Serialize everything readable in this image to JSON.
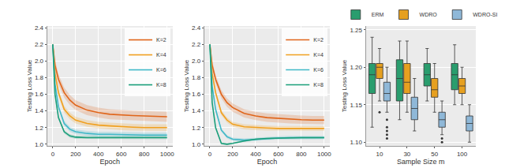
{
  "chart_data": [
    {
      "type": "line",
      "x_label": "Epoch",
      "y_label": "Testing Loss Value",
      "grid": true,
      "legend": "top right",
      "x": [
        0,
        20,
        50,
        100,
        150,
        200,
        300,
        400,
        500,
        600,
        700,
        800,
        900,
        1000
      ],
      "xlim": [
        -50,
        1050
      ],
      "xticks": [
        0,
        200,
        400,
        600,
        800,
        1000
      ],
      "ylim": [
        0.98,
        2.42
      ],
      "yticks": [
        {
          "value": 1,
          "label": "1.0"
        },
        1.2,
        1.4,
        1.6,
        1.8,
        {
          "value": 2,
          "label": "2.0"
        },
        2.2,
        2.4
      ],
      "series": [
        {
          "name": "K=2",
          "color": "#e0651a",
          "values": [
            2.2,
            1.95,
            1.78,
            1.62,
            1.53,
            1.47,
            1.41,
            1.38,
            1.36,
            1.35,
            1.345,
            1.34,
            1.335,
            1.33
          ],
          "lower": [
            2.16,
            1.89,
            1.72,
            1.56,
            1.47,
            1.41,
            1.35,
            1.32,
            1.3,
            1.29,
            1.285,
            1.28,
            1.275,
            1.27
          ],
          "upper": [
            2.24,
            2.01,
            1.84,
            1.68,
            1.59,
            1.53,
            1.47,
            1.44,
            1.42,
            1.41,
            1.405,
            1.4,
            1.395,
            1.39
          ]
        },
        {
          "name": "K=4",
          "color": "#f0a020",
          "values": [
            2.2,
            1.85,
            1.62,
            1.42,
            1.34,
            1.29,
            1.25,
            1.23,
            1.22,
            1.21,
            1.205,
            1.2,
            1.2,
            1.2
          ],
          "lower": [
            2.17,
            1.81,
            1.58,
            1.38,
            1.3,
            1.25,
            1.21,
            1.19,
            1.18,
            1.17,
            1.165,
            1.16,
            1.16,
            1.16
          ],
          "upper": [
            2.23,
            1.89,
            1.66,
            1.46,
            1.38,
            1.33,
            1.29,
            1.27,
            1.26,
            1.25,
            1.245,
            1.24,
            1.24,
            1.24
          ]
        },
        {
          "name": "K=6",
          "color": "#40b8c8",
          "values": [
            2.2,
            1.72,
            1.45,
            1.25,
            1.18,
            1.15,
            1.13,
            1.12,
            1.12,
            1.115,
            1.115,
            1.11,
            1.11,
            1.11
          ],
          "lower": [
            2.18,
            1.69,
            1.42,
            1.22,
            1.15,
            1.12,
            1.1,
            1.09,
            1.09,
            1.085,
            1.085,
            1.08,
            1.08,
            1.08
          ],
          "upper": [
            2.22,
            1.75,
            1.48,
            1.28,
            1.21,
            1.18,
            1.16,
            1.15,
            1.15,
            1.145,
            1.145,
            1.14,
            1.14,
            1.14
          ]
        },
        {
          "name": "K=8",
          "color": "#1a9e7a",
          "values": [
            2.2,
            1.6,
            1.32,
            1.15,
            1.1,
            1.085,
            1.08,
            1.08,
            1.08,
            1.08,
            1.08,
            1.08,
            1.08,
            1.08
          ],
          "lower": [
            2.18,
            1.58,
            1.3,
            1.13,
            1.08,
            1.065,
            1.06,
            1.06,
            1.06,
            1.06,
            1.06,
            1.06,
            1.06,
            1.06
          ],
          "upper": [
            2.22,
            1.62,
            1.34,
            1.17,
            1.12,
            1.105,
            1.1,
            1.1,
            1.1,
            1.1,
            1.1,
            1.1,
            1.1,
            1.1
          ]
        }
      ]
    },
    {
      "type": "line",
      "x_label": "Epoch",
      "y_label": "Testing Loss Value",
      "grid": true,
      "legend": "top right",
      "x": [
        0,
        20,
        50,
        100,
        150,
        200,
        300,
        400,
        500,
        600,
        700,
        800,
        900,
        1000
      ],
      "xlim": [
        -50,
        1050
      ],
      "xticks": [
        0,
        200,
        400,
        600,
        800,
        1000
      ],
      "ylim": [
        0.98,
        2.42
      ],
      "yticks": [
        {
          "value": 1,
          "label": "1.0"
        },
        1.2,
        1.4,
        1.6,
        1.8,
        {
          "value": 2,
          "label": "2.0"
        },
        2.2,
        2.4
      ],
      "series": [
        {
          "name": "K=2",
          "color": "#e0651a",
          "values": [
            2.2,
            1.95,
            1.78,
            1.6,
            1.5,
            1.44,
            1.37,
            1.34,
            1.32,
            1.31,
            1.3,
            1.295,
            1.29,
            1.29
          ],
          "lower": [
            2.16,
            1.9,
            1.73,
            1.55,
            1.45,
            1.39,
            1.32,
            1.29,
            1.27,
            1.26,
            1.25,
            1.245,
            1.24,
            1.24
          ],
          "upper": [
            2.24,
            2.0,
            1.83,
            1.65,
            1.55,
            1.49,
            1.42,
            1.39,
            1.37,
            1.36,
            1.35,
            1.345,
            1.34,
            1.34
          ]
        },
        {
          "name": "K=4",
          "color": "#f0a020",
          "values": [
            2.2,
            1.85,
            1.62,
            1.38,
            1.29,
            1.24,
            1.21,
            1.2,
            1.195,
            1.19,
            1.19,
            1.19,
            1.19,
            1.19
          ],
          "lower": [
            2.18,
            1.82,
            1.59,
            1.35,
            1.26,
            1.21,
            1.18,
            1.17,
            1.165,
            1.16,
            1.16,
            1.16,
            1.16,
            1.16
          ],
          "upper": [
            2.22,
            1.88,
            1.65,
            1.41,
            1.32,
            1.27,
            1.24,
            1.23,
            1.225,
            1.22,
            1.22,
            1.22,
            1.22,
            1.22
          ]
        },
        {
          "name": "K=6",
          "color": "#40b8c8",
          "values": [
            2.2,
            1.7,
            1.42,
            1.17,
            1.09,
            1.06,
            1.05,
            1.06,
            1.07,
            1.075,
            1.08,
            1.08,
            1.08,
            1.08
          ],
          "lower": [
            2.18,
            1.68,
            1.4,
            1.15,
            1.07,
            1.04,
            1.03,
            1.04,
            1.05,
            1.055,
            1.06,
            1.06,
            1.06,
            1.06
          ],
          "upper": [
            2.22,
            1.72,
            1.44,
            1.19,
            1.11,
            1.08,
            1.07,
            1.08,
            1.09,
            1.095,
            1.1,
            1.1,
            1.1,
            1.1
          ]
        },
        {
          "name": "K=8",
          "color": "#1a9e7a",
          "values": [
            2.2,
            1.5,
            1.2,
            1.01,
            1.0,
            1.01,
            1.04,
            1.06,
            1.07,
            1.075,
            1.08,
            1.08,
            1.08,
            1.08
          ],
          "lower": [
            2.19,
            1.49,
            1.19,
            1.0,
            0.99,
            1.0,
            1.03,
            1.05,
            1.06,
            1.065,
            1.07,
            1.07,
            1.07,
            1.07
          ],
          "upper": [
            2.21,
            1.51,
            1.21,
            1.02,
            1.01,
            1.02,
            1.05,
            1.07,
            1.08,
            1.085,
            1.09,
            1.09,
            1.09,
            1.09
          ]
        }
      ]
    },
    {
      "type": "box",
      "x_label": "Sample Size m",
      "y_label": "Testing Loss Value",
      "grid": true,
      "legend": "top",
      "categories": [
        "10",
        "30",
        "50",
        "100"
      ],
      "ylim": [
        1.095,
        1.255
      ],
      "yticks": [
        {
          "value": 1.1,
          "label": "1.10"
        },
        1.15,
        {
          "value": 1.2,
          "label": "1.20"
        },
        1.25
      ],
      "series": [
        {
          "name": "ERM",
          "color": "#2a9d6e",
          "lower": [
            1.12,
            1.13,
            1.155,
            1.15
          ],
          "q1": [
            1.165,
            1.155,
            1.175,
            1.17
          ],
          "median": [
            1.19,
            1.185,
            1.19,
            1.19
          ],
          "q3": [
            1.205,
            1.21,
            1.205,
            1.205
          ],
          "upper": [
            1.24,
            1.235,
            1.225,
            1.23
          ],
          "outliers": [
            [],
            [],
            [],
            []
          ]
        },
        {
          "name": "WDRO",
          "color": "#e6a020",
          "lower": [
            1.155,
            1.14,
            1.14,
            1.15
          ],
          "q1": [
            1.185,
            1.165,
            1.16,
            1.165
          ],
          "median": [
            1.2,
            1.18,
            1.17,
            1.175
          ],
          "q3": [
            1.205,
            1.205,
            1.185,
            1.185
          ],
          "upper": [
            1.225,
            1.235,
            1.205,
            1.2
          ],
          "outliers": [
            [
              1.14
            ],
            [],
            [],
            []
          ]
        },
        {
          "name": "WDRO-SI",
          "color": "#8fb8d8",
          "lower": [
            1.14,
            1.115,
            1.11,
            1.1
          ],
          "q1": [
            1.155,
            1.13,
            1.12,
            1.115
          ],
          "median": [
            1.165,
            1.145,
            1.13,
            1.125
          ],
          "q3": [
            1.18,
            1.16,
            1.14,
            1.135
          ],
          "upper": [
            1.2,
            1.185,
            1.155,
            1.15
          ],
          "outliers": [
            [
              1.13,
              1.12,
              1.115,
              1.11,
              1.105
            ],
            [],
            [
              1.105,
              1.1
            ],
            []
          ]
        }
      ]
    }
  ]
}
